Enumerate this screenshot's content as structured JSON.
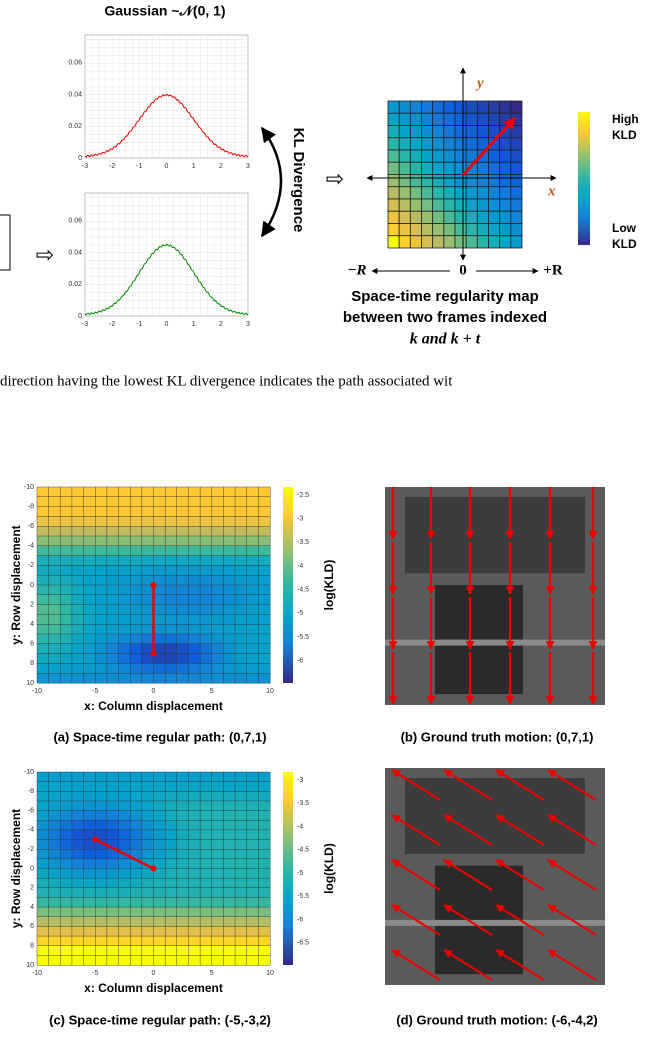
{
  "top_figure": {
    "gaussian_title": "Gaussian ~𝒩(0, 1)",
    "plot_1": {
      "yticks": [
        0,
        0.02,
        0.04,
        0.06
      ],
      "xticks": [
        -3,
        -2,
        -1,
        0,
        1,
        2,
        3
      ]
    },
    "plot_2": {
      "yticks": [
        0,
        0.02,
        0.04,
        0.06
      ],
      "xticks": [
        -3,
        -2,
        -1,
        0,
        1,
        2,
        3
      ]
    },
    "kl_label": "KL Divergence",
    "axis_y": "y",
    "axis_x": "x",
    "range_labels": [
      "−R",
      "0",
      "+R"
    ],
    "colorbar_high": [
      "High",
      "KLD"
    ],
    "colorbar_low": [
      "Low",
      "KLD"
    ],
    "caption": [
      "Space-time regularity map",
      "between two frames indexed",
      "k and k + t"
    ]
  },
  "text_line": "direction having the lowest KL divergence indicates the path associated wit",
  "panels": [
    {
      "xticks": [
        -10,
        -5,
        0,
        5,
        10
      ],
      "yticks": [
        -10,
        -8,
        -6,
        -4,
        -2,
        0,
        2,
        4,
        6,
        8,
        10
      ],
      "colorbar_ticks": [
        -2.5,
        -3,
        -3.5,
        -4,
        -4.5,
        -5,
        -5.5,
        -6
      ],
      "colorbar_label": "log(KLD)",
      "y_label": "y: Row displacement",
      "x_label": "x: Column displacement",
      "caption": "(a) Space-time regular path: (0,7,1)"
    },
    {
      "caption": "(b) Ground truth motion: (0,7,1)"
    },
    {
      "xticks": [
        -10,
        -5,
        0,
        5,
        10
      ],
      "yticks": [
        -10,
        -8,
        -6,
        -4,
        -2,
        0,
        2,
        4,
        6,
        8,
        10
      ],
      "colorbar_ticks": [
        -3,
        -3.5,
        -4,
        -4.5,
        -5,
        -5.5,
        -6,
        -6.5
      ],
      "colorbar_label": "log(KLD)",
      "y_label": "y: Row displacement",
      "x_label": "x: Column displacement",
      "caption": "(c) Space-time regular path: (-5,-3,2)"
    },
    {
      "caption": "(d) Ground truth motion: (-6,-4,2)"
    }
  ]
}
